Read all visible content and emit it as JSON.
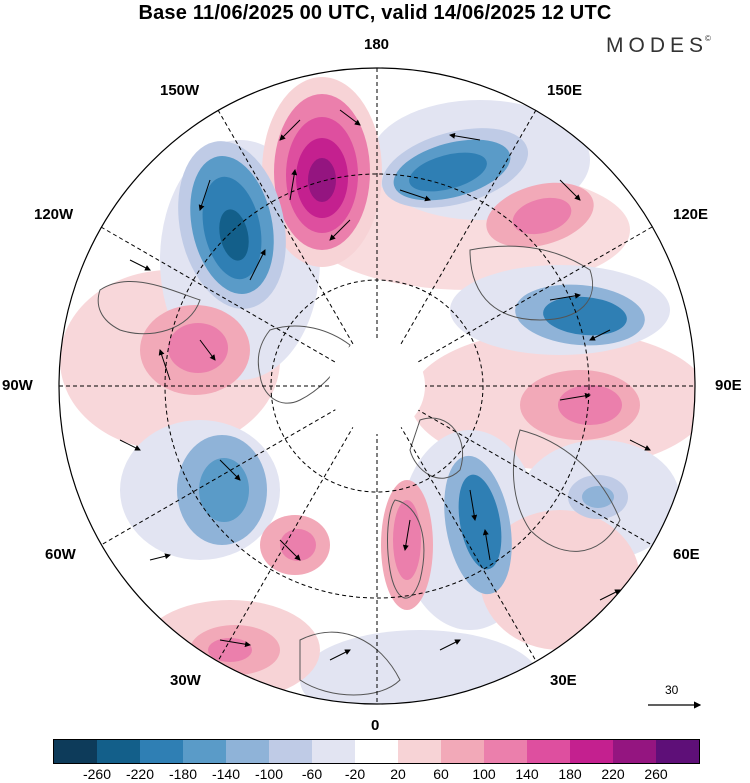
{
  "title": "Base 11/06/2025 00 UTC, valid 14/06/2025 12 UTC",
  "brand": "MODES",
  "brand_mark": "©",
  "longitude_labels": {
    "lon_180": "180",
    "lon_150e": "150E",
    "lon_120e": "120E",
    "lon_90e": "90E",
    "lon_60e": "60E",
    "lon_30e": "30E",
    "lon_0": "0",
    "lon_30w": "30W",
    "lon_60w": "60W",
    "lon_90w": "90W",
    "lon_120w": "120W",
    "lon_150w": "150W"
  },
  "reference_vector": "30",
  "colorbar": {
    "colors": [
      "#0d3b5a",
      "#135f8a",
      "#2f7fb4",
      "#5a9bc8",
      "#8fb3d8",
      "#bfcbe6",
      "#e2e4f2",
      "#ffffff",
      "#f7d3d6",
      "#f2a9b8",
      "#eb7fac",
      "#de4f9f",
      "#c4208f",
      "#941580",
      "#5e0f78"
    ],
    "ticks": [
      "-260",
      "-220",
      "-180",
      "-140",
      "-100",
      "-60",
      "-20",
      "20",
      "60",
      "100",
      "140",
      "180",
      "220",
      "260"
    ]
  },
  "icons": [
    "north-arrow-icon"
  ]
}
